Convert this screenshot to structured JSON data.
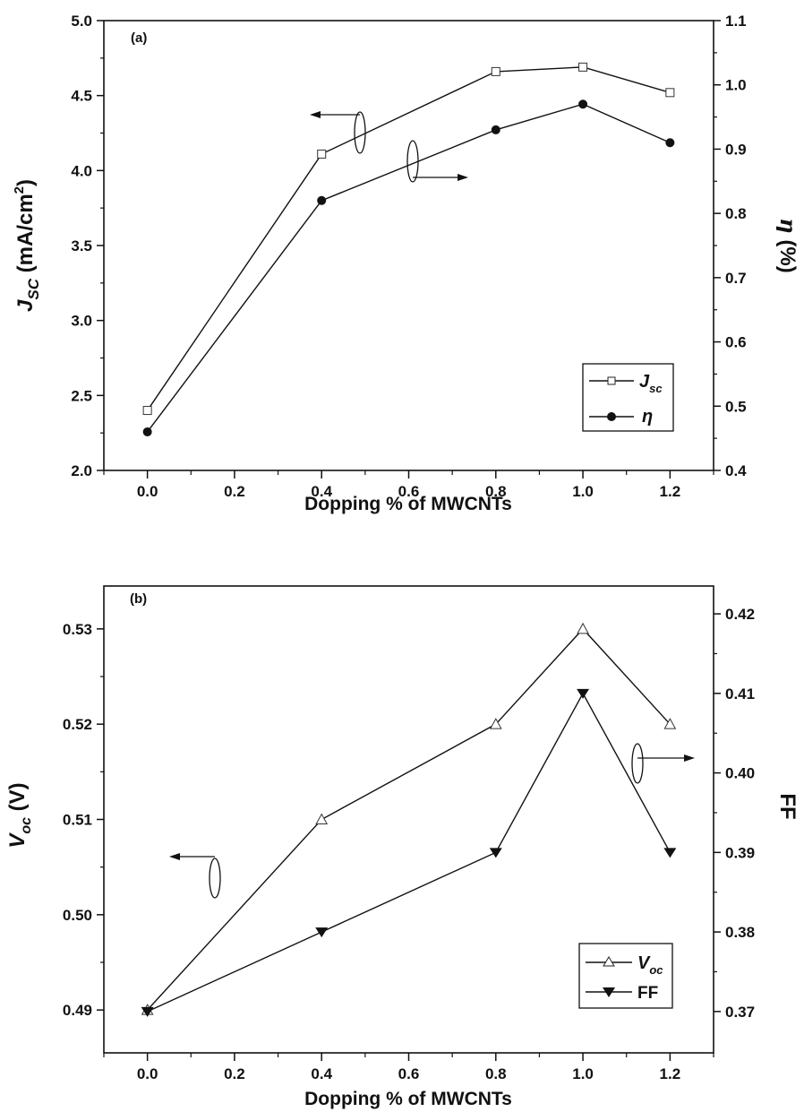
{
  "chart_data": [
    {
      "type": "line",
      "panel_label": "(a)",
      "xlabel": "Dopping % of MWCNTs",
      "xlim": [
        -0.1,
        1.3
      ],
      "x_ticks": [
        "0.0",
        "0.2",
        "0.4",
        "0.6",
        "0.8",
        "1.0",
        "1.2"
      ],
      "y_left": {
        "label_main": "J",
        "label_sub": "SC",
        "label_unit": " (mA/cm",
        "label_sup": "2",
        "label_close": ")",
        "ylim": [
          2.0,
          5.0
        ],
        "ticks": [
          "2.0",
          "2.5",
          "3.0",
          "3.5",
          "4.0",
          "4.5",
          "5.0"
        ]
      },
      "y_right": {
        "label_main": "η",
        "label_unit": " (%)",
        "ylim": [
          0.4,
          1.1
        ],
        "ticks": [
          "0.4",
          "0.5",
          "0.6",
          "0.7",
          "0.8",
          "0.9",
          "1.0",
          "1.1"
        ]
      },
      "series": [
        {
          "name_main": "J",
          "name_sub": "sc",
          "axis": "left",
          "marker": "open-square",
          "x": [
            0.0,
            0.4,
            0.8,
            1.0,
            1.2
          ],
          "values": [
            2.4,
            4.11,
            4.66,
            4.69,
            4.52
          ]
        },
        {
          "name_main": "η",
          "axis": "right",
          "marker": "filled-circle",
          "x": [
            0.0,
            0.4,
            0.8,
            1.0,
            1.2
          ],
          "values": [
            0.46,
            0.82,
            0.93,
            0.97,
            0.91
          ]
        }
      ],
      "legend_position": "bottom-right",
      "annotations": [
        "left-arrow-to-Jsc-axis",
        "right-arrow-to-eta-axis"
      ],
      "grid": false
    },
    {
      "type": "line",
      "panel_label": "(b)",
      "xlabel": "Dopping % of MWCNTs",
      "xlim": [
        -0.1,
        1.3
      ],
      "x_ticks": [
        "0.0",
        "0.2",
        "0.4",
        "0.6",
        "0.8",
        "1.0",
        "1.2"
      ],
      "y_left": {
        "label_main": "V",
        "label_sub": "oc",
        "label_unit": " (V)",
        "ylim": [
          0.4855,
          0.5345
        ],
        "ticks": [
          "0.49",
          "0.50",
          "0.51",
          "0.52",
          "0.53"
        ]
      },
      "y_right": {
        "label_main": "FF",
        "ylim": [
          0.3648,
          0.4235
        ],
        "ticks": [
          "0.37",
          "0.38",
          "0.39",
          "0.40",
          "0.41",
          "0.42"
        ]
      },
      "series": [
        {
          "name_main": "V",
          "name_sub": "oc",
          "axis": "left",
          "marker": "open-triangle-up",
          "x": [
            0.0,
            0.4,
            0.8,
            1.0,
            1.2
          ],
          "values": [
            0.49,
            0.51,
            0.52,
            0.53,
            0.52
          ]
        },
        {
          "name_main": "FF",
          "axis": "right",
          "marker": "filled-triangle-down",
          "x": [
            0.0,
            0.4,
            0.8,
            1.0,
            1.2
          ],
          "values": [
            0.37,
            0.38,
            0.39,
            0.41,
            0.39
          ]
        }
      ],
      "legend_position": "bottom-right",
      "annotations": [
        "left-arrow-to-Voc-axis",
        "right-arrow-to-FF-axis"
      ],
      "grid": false
    }
  ]
}
